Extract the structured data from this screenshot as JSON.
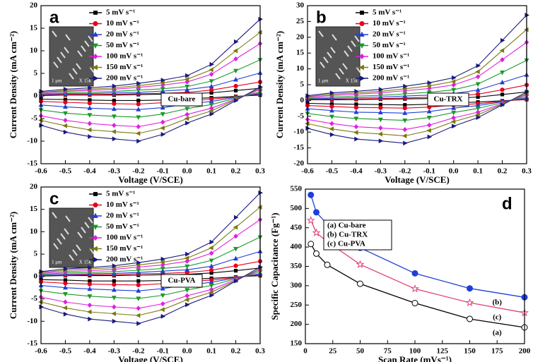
{
  "chart_data": [
    {
      "type": "line",
      "label": "a",
      "annotation": "Cu-bare",
      "inset_text": [
        "1 μm",
        "X 15k"
      ],
      "x_label": "Voltage (V/SCE)",
      "y_label": "Current Density (mA cm⁻²)",
      "xlim": [
        -0.6,
        0.3
      ],
      "xticks": [
        -0.6,
        -0.5,
        -0.4,
        -0.3,
        -0.2,
        -0.1,
        {
          "value": 0,
          "label": "0.0"
        },
        0.1,
        0.2,
        0.3
      ],
      "ylim": [
        -15,
        20
      ],
      "yticks": [
        -15,
        -10,
        -5,
        0,
        5,
        10,
        15,
        20
      ],
      "x": [
        -0.6,
        -0.5,
        -0.4,
        -0.3,
        -0.2,
        -0.1,
        0,
        0.1,
        0.2,
        0.3,
        0.3,
        0.2,
        0.1,
        0,
        -0.1,
        -0.2,
        -0.3,
        -0.4,
        -0.5,
        -0.6
      ],
      "series": [
        {
          "name": "5 mV s⁻¹",
          "color": "#000000",
          "marker": "square",
          "values": [
            0.1,
            0.2,
            0.2,
            0.2,
            0.3,
            0.4,
            0.5,
            0.7,
            1.2,
            1.7,
            0.2,
            -0.1,
            -0.4,
            -0.6,
            -0.9,
            -1,
            -1,
            -0.9,
            -0.8,
            -0.7
          ]
        },
        {
          "name": "10 mV s⁻¹",
          "color": "#e8001c",
          "marker": "circle",
          "values": [
            0.2,
            0.3,
            0.3,
            0.4,
            0.5,
            0.6,
            0.8,
            1.3,
            2.2,
            3.1,
            0.4,
            -0.2,
            -0.7,
            -1.1,
            -1.5,
            -1.8,
            -1.7,
            -1.6,
            -1.4,
            -1.2
          ]
        },
        {
          "name": "20 mV s⁻¹",
          "color": "#1f3fd8",
          "marker": "tri-up",
          "values": [
            0.3,
            0.5,
            0.5,
            0.7,
            0.8,
            1.1,
            1.4,
            2.1,
            3.6,
            5.1,
            0.6,
            -0.3,
            -1.2,
            -1.8,
            -2.6,
            -3,
            -2.9,
            -2.7,
            -2.4,
            -2
          ]
        },
        {
          "name": "50 mV s⁻¹",
          "color": "#1a9a2a",
          "marker": "tri-down",
          "values": [
            0.5,
            0.7,
            0.8,
            1,
            1.3,
            1.6,
            2.1,
            3.3,
            5.6,
            8,
            0.9,
            -0.5,
            -1.9,
            -2.8,
            -4,
            -4.7,
            -4.5,
            -4.2,
            -3.8,
            -3.1
          ]
        },
        {
          "name": "100 mV s⁻¹",
          "color": "#e020e0",
          "marker": "diamond",
          "values": [
            0.7,
            1,
            1.2,
            1.5,
            1.9,
            2.4,
            3.1,
            4.8,
            8.2,
            11.6,
            1.4,
            -0.7,
            -2.7,
            -4.1,
            -5.8,
            -6.8,
            -6.5,
            -6.1,
            -5.4,
            -4.4
          ]
        },
        {
          "name": "150 mV s⁻¹",
          "color": "#7a7a10",
          "marker": "tri-left",
          "values": [
            0.8,
            1.2,
            1.5,
            1.8,
            2.3,
            2.9,
            3.7,
            5.8,
            10,
            14.1,
            1.7,
            -0.8,
            -3.3,
            -5,
            -7.1,
            -8.3,
            -7.9,
            -7.5,
            -6.6,
            -5.4
          ]
        },
        {
          "name": "200 mV s⁻¹",
          "color": "#1a1a80",
          "marker": "tri-right",
          "values": [
            1,
            1.5,
            1.8,
            2.2,
            2.8,
            3.5,
            4.5,
            7,
            12,
            17,
            2,
            -1,
            -4,
            -6,
            -8.5,
            -10,
            -9.5,
            -9,
            -8,
            -6.5
          ]
        }
      ]
    },
    {
      "type": "line",
      "label": "b",
      "annotation": "Cu-TRX",
      "inset_text": [
        "1 μm",
        "X 15k"
      ],
      "x_label": "Voltage (V/SCE)",
      "y_label": "Current Density (mA cm⁻²)",
      "xlim": [
        -0.6,
        0.3
      ],
      "xticks": [
        -0.6,
        -0.5,
        -0.4,
        -0.3,
        -0.2,
        -0.1,
        {
          "value": 0,
          "label": "0.0"
        },
        0.1,
        0.2,
        0.3
      ],
      "ylim": [
        -20,
        30
      ],
      "yticks": [
        -20,
        -15,
        -10,
        -5,
        0,
        5,
        10,
        15,
        20,
        25,
        30
      ],
      "x": [
        -0.6,
        -0.5,
        -0.4,
        -0.3,
        -0.2,
        -0.1,
        0,
        0.1,
        0.2,
        0.3,
        0.3,
        0.2,
        0.1,
        0,
        -0.1,
        -0.2,
        -0.3,
        -0.4,
        -0.5,
        -0.6
      ],
      "series": [
        {
          "name": "5 mV s⁻¹",
          "color": "#000000",
          "marker": "square",
          "values": [
            0.2,
            0.2,
            0.3,
            0.4,
            0.5,
            0.6,
            0.7,
            1.1,
            1.9,
            2.7,
            0.3,
            -0.1,
            -0.5,
            -0.8,
            -1.2,
            -1.4,
            -1.3,
            -1.2,
            -1.1,
            -0.9
          ]
        },
        {
          "name": "10 mV s⁻¹",
          "color": "#e8001c",
          "marker": "circle",
          "values": [
            0.3,
            0.4,
            0.5,
            0.6,
            0.8,
            1,
            1.3,
            2,
            3.4,
            4.9,
            0.5,
            -0.3,
            -1,
            -1.5,
            -2.1,
            -2.4,
            -2.3,
            -2.2,
            -1.9,
            -1.6
          ]
        },
        {
          "name": "20 mV s⁻¹",
          "color": "#1f3fd8",
          "marker": "tri-up",
          "values": [
            0.5,
            0.7,
            0.9,
            1.1,
            1.4,
            1.7,
            2.2,
            3.3,
            5.7,
            8.1,
            0.8,
            -0.4,
            -1.6,
            -2.4,
            -3.5,
            -4,
            -3.8,
            -3.7,
            -3.2,
            -2.6
          ]
        },
        {
          "name": "50 mV s⁻¹",
          "color": "#1a9a2a",
          "marker": "tri-down",
          "values": [
            0.7,
            1.1,
            1.4,
            1.6,
            2.1,
            2.6,
            3.4,
            5.2,
            8.9,
            12.7,
            1.3,
            -0.7,
            -2.5,
            -3.8,
            -5.4,
            -6.3,
            -6,
            -5.7,
            -5.1,
            -4.1
          ]
        },
        {
          "name": "100 mV s⁻¹",
          "color": "#e020e0",
          "marker": "diamond",
          "values": [
            1,
            1.6,
            2,
            2.4,
            3.1,
            3.8,
            4.9,
            7.5,
            12.9,
            18.4,
            1.8,
            -1,
            -3.7,
            -5.5,
            -7.8,
            -9.2,
            -8.7,
            -8.3,
            -7.3,
            -6
          ]
        },
        {
          "name": "150 mV s⁻¹",
          "color": "#7a7a10",
          "marker": "tri-left",
          "values": [
            1.2,
            2,
            2.4,
            2.9,
            3.7,
            4.6,
            6,
            9.1,
            15.8,
            22.4,
            2.2,
            -1.2,
            -4.5,
            -6.7,
            -9.5,
            -11.2,
            -10.6,
            -10.1,
            -9,
            -7.3
          ]
        },
        {
          "name": "200 mV s⁻¹",
          "color": "#1a1a80",
          "marker": "tri-right",
          "values": [
            1.5,
            2.4,
            2.9,
            3.5,
            4.5,
            5.6,
            7.2,
            11,
            19,
            27,
            2.7,
            -1.4,
            -5.4,
            -8.1,
            -11.5,
            -13.5,
            -12.8,
            -12.2,
            -10.8,
            -8.8
          ]
        }
      ]
    },
    {
      "type": "line",
      "label": "c",
      "annotation": "Cu-PVA",
      "inset_text": [
        "1 μm",
        "X 15k"
      ],
      "x_label": "Voltage (V/SCE)",
      "y_label": "Current Density (mA cm⁻²)",
      "xlim": [
        -0.6,
        0.3
      ],
      "xticks": [
        -0.6,
        -0.5,
        -0.4,
        -0.3,
        -0.2,
        -0.1,
        {
          "value": 0,
          "label": "0.0"
        },
        0.1,
        0.2,
        0.3
      ],
      "ylim": [
        -15,
        20
      ],
      "yticks": [
        -15,
        -10,
        -5,
        0,
        5,
        10,
        15,
        20
      ],
      "x": [
        -0.6,
        -0.5,
        -0.4,
        -0.3,
        -0.2,
        -0.1,
        0,
        0.1,
        0.2,
        0.3,
        0.3,
        0.2,
        0.1,
        0,
        -0.1,
        -0.2,
        -0.3,
        -0.4,
        -0.5,
        -0.6
      ],
      "series": [
        {
          "name": "5 mV s⁻¹",
          "color": "#000000",
          "marker": "square",
          "values": [
            0.1,
            0.2,
            0.2,
            0.2,
            0.3,
            0.4,
            0.5,
            0.8,
            1.3,
            1.9,
            0.2,
            -0.1,
            -0.4,
            -0.6,
            -0.9,
            -1,
            -1,
            -1,
            -0.8,
            -0.7
          ]
        },
        {
          "name": "10 mV s⁻¹",
          "color": "#e8001c",
          "marker": "circle",
          "values": [
            0.2,
            0.3,
            0.4,
            0.4,
            0.6,
            0.7,
            0.9,
            1.4,
            2.4,
            3.4,
            0.4,
            -0.2,
            -0.8,
            -1.1,
            -1.6,
            -1.9,
            -1.8,
            -1.7,
            -1.5,
            -1.2
          ]
        },
        {
          "name": "20 mV s⁻¹",
          "color": "#1f3fd8",
          "marker": "tri-up",
          "values": [
            0.3,
            0.5,
            0.6,
            0.7,
            0.9,
            1.2,
            1.5,
            2.3,
            4,
            5.6,
            0.6,
            -0.3,
            -1.3,
            -1.9,
            -2.7,
            -3.2,
            -3,
            -2.8,
            -2.5,
            -2
          ]
        },
        {
          "name": "50 mV s⁻¹",
          "color": "#1a9a2a",
          "marker": "tri-down",
          "values": [
            0.5,
            0.8,
            0.9,
            1.1,
            1.4,
            1.8,
            2.3,
            3.6,
            6.2,
            8.8,
            1,
            -0.5,
            -2,
            -3,
            -4.2,
            -4.9,
            -4.7,
            -4.4,
            -3.9,
            -3.2
          ]
        },
        {
          "name": "100 mV s⁻¹",
          "color": "#e020e0",
          "marker": "diamond",
          "values": [
            0.7,
            1.1,
            1.3,
            1.6,
            2.1,
            2.6,
            3.4,
            5.2,
            9,
            12.7,
            1.4,
            -0.7,
            -2.9,
            -4.3,
            -6.1,
            -7.1,
            -6.8,
            -6.4,
            -5.7,
            -4.6
          ]
        },
        {
          "name": "150 mV s⁻¹",
          "color": "#7a7a10",
          "marker": "tri-left",
          "values": [
            0.9,
            1.4,
            1.7,
            2,
            2.6,
            3.2,
            4.1,
            6.4,
            11,
            15.5,
            1.7,
            -0.9,
            -3.5,
            -5.2,
            -7.4,
            -8.7,
            -8.3,
            -7.9,
            -7,
            -5.7
          ]
        },
        {
          "name": "200 mV s⁻¹",
          "color": "#1a1a80",
          "marker": "tri-right",
          "values": [
            1.1,
            1.7,
            2,
            2.4,
            3.1,
            3.9,
            5,
            7.7,
            13.2,
            18.7,
            2.1,
            -1,
            -4.2,
            -6.3,
            -8.9,
            -10.5,
            -10,
            -9.5,
            -8.4,
            -6.8
          ]
        }
      ]
    },
    {
      "type": "line",
      "label": "d",
      "curve_labels": [
        "(a)",
        "(b)",
        "(c)"
      ],
      "x_label": "Scan Rate (mVs⁻¹)",
      "y_label": "Specific Capacitance (Fg⁻¹)",
      "xlim": [
        0,
        200
      ],
      "xticks": [
        0,
        25,
        50,
        75,
        100,
        125,
        150,
        175,
        200
      ],
      "ylim": [
        150,
        550
      ],
      "yticks": [
        150,
        200,
        250,
        300,
        350,
        400,
        450,
        500,
        550
      ],
      "x": [
        5,
        10,
        20,
        50,
        100,
        150,
        200
      ],
      "series": [
        {
          "name": "(a) Cu-bare",
          "color": "#000000",
          "marker": "circle",
          "marker_fill": "#ffffff",
          "values": [
            408,
            383,
            354,
            305,
            255,
            214,
            192
          ]
        },
        {
          "name": "(b) Cu-TRX",
          "color": "#1f3fd8",
          "marker": "circle",
          "marker_fill": "#1f3fd8",
          "values": [
            535,
            490,
            459,
            398,
            332,
            293,
            270
          ]
        },
        {
          "name": "(c) Cu-PVA",
          "color": "#e0407a",
          "marker": "star",
          "marker_fill": "#ffffff",
          "values": [
            469,
            437,
            414,
            355,
            292,
            256,
            230
          ]
        }
      ]
    }
  ]
}
